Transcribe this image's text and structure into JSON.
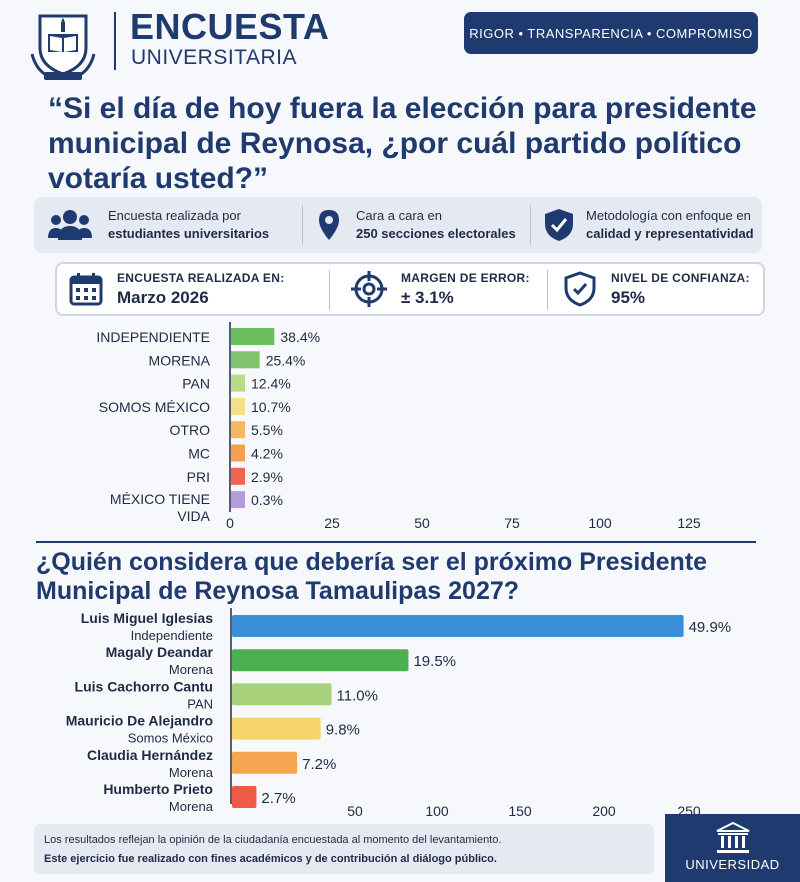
{
  "header": {
    "brand_line1": "ENCUESTA",
    "brand_line2": "UNIVERSITARIA",
    "tagline": "RIGOR • TRANSPARENCIA • COMPROMISO"
  },
  "question1": "“Si el día de hoy fuera la elección para presidente municipal de Reynosa, ¿por cuál partido político votaría usted?”",
  "info": [
    {
      "icon": "people-icon",
      "line1": "Encuesta realizada por",
      "line2": "estudiantes universitarios"
    },
    {
      "icon": "location-pin-icon",
      "line1": "Cara a cara en",
      "line2": "250 secciones electorales"
    },
    {
      "icon": "shield-check-icon",
      "line1": "Metodología con enfoque en",
      "line2": "calidad y representatividad"
    }
  ],
  "stats": [
    {
      "icon": "calendar-icon",
      "label": "ENCUESTA REALIZADA EN:",
      "value": "Marzo 2026"
    },
    {
      "icon": "target-icon",
      "label": "MARGEN DE ERROR:",
      "value": "± 3.1%"
    },
    {
      "icon": "shield-check-icon",
      "label": "NIVEL DE CONFIANZA:",
      "value": "95%"
    }
  ],
  "question2": "¿Quién considera que debería ser el próximo Presidente Municipal de Reynosa Tamaulipas 2027?",
  "chart_data": [
    {
      "type": "bar",
      "orientation": "horizontal",
      "categories": [
        "INDEPENDIENTE",
        "MORENA",
        "PAN",
        "SOMOS MÉXICO",
        "OTRO",
        "MC",
        "PRI",
        "MÉXICO TIENE VIDA"
      ],
      "values": [
        38.4,
        25.4,
        12.4,
        10.7,
        5.5,
        4.2,
        2.9,
        0.3
      ],
      "value_labels": [
        "38.4%",
        "25.4%",
        "12.4%",
        "10.7%",
        "5.5%",
        "4.2%",
        "2.9%",
        "0.3%"
      ],
      "colors": [
        "#6cbf5f",
        "#7fc36d",
        "#b9dc8a",
        "#f8df86",
        "#f6b85f",
        "#f5a050",
        "#ef6552",
        "#b79ad8"
      ],
      "xticks": [
        "0",
        "25",
        "50",
        "75",
        "100",
        "125"
      ],
      "grid": false,
      "legend": "none"
    },
    {
      "type": "bar",
      "orientation": "horizontal",
      "categories": [
        "Luis Miguel Iglesias",
        "Magaly Deandar",
        "Luis Cachorro Cantu",
        "Mauricio De Alejandro",
        "Claudia Hernández",
        "Humberto Prieto"
      ],
      "subcategories": [
        "Independiente",
        "Morena",
        "PAN",
        "Somos México",
        "Morena",
        "Morena"
      ],
      "values": [
        49.9,
        19.5,
        11.0,
        9.8,
        7.2,
        2.7
      ],
      "value_labels": [
        "49.9%",
        "19.5%",
        "11.0%",
        "9.8%",
        "7.2%",
        "2.7%"
      ],
      "colors": [
        "#3a8fd8",
        "#4caf50",
        "#a9d27c",
        "#f8d56a",
        "#f5a650",
        "#ee5a45"
      ],
      "xticks": [
        "50",
        "100",
        "150",
        "200",
        "250"
      ],
      "grid": false,
      "legend": "none"
    }
  ],
  "footer": {
    "line1": "Los resultados reflejan la opinión de la ciudadanía encuestada al momento del levantamiento.",
    "line2": "Este ejercicio fue realizado con fines académicos y de contribución al diálogo público."
  },
  "university_label": "UNIVERSIDAD",
  "colors": {
    "primary": "#1f3a6e",
    "background": "#f7f8fb",
    "panel": "#e5e9f1"
  }
}
